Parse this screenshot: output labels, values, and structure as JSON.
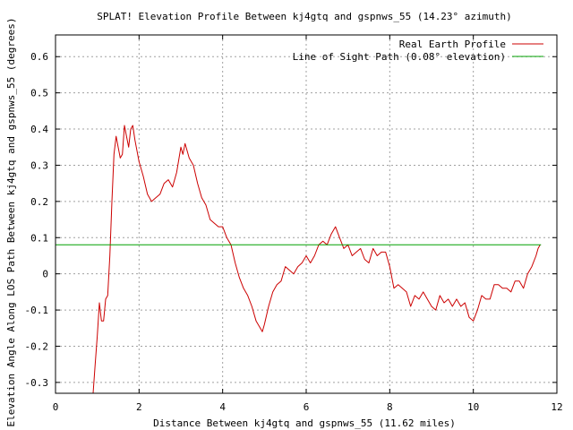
{
  "chart_data": {
    "type": "line",
    "title": "SPLAT! Elevation Profile Between kj4gtq and gspnws_55 (14.23° azimuth)",
    "xlabel": "Distance Between kj4gtq and gspnws_55 (11.62 miles)",
    "ylabel": "Elevation Angle Along LOS Path Between kj4gtq and gspnws_55 (degrees)",
    "xlim": [
      0,
      12
    ],
    "ylim": [
      -0.33,
      0.66
    ],
    "xticks": [
      0,
      2,
      4,
      6,
      8,
      10,
      12
    ],
    "xtick_labels": [
      "0",
      "2",
      "4",
      "6",
      "8",
      "10",
      "12"
    ],
    "yticks": [
      -0.3,
      -0.2,
      -0.1,
      0,
      0.1,
      0.2,
      0.3,
      0.4,
      0.5,
      0.6
    ],
    "ytick_labels": [
      "-0.3",
      "-0.2",
      "-0.1",
      "0",
      "0.1",
      "0.2",
      "0.3",
      "0.4",
      "0.5",
      "0.6"
    ],
    "grid": true,
    "legend_position": "top-right",
    "series": [
      {
        "name": "Real Earth Profile",
        "color": "#cc0000",
        "x": [
          0.9,
          0.95,
          1.0,
          1.05,
          1.1,
          1.15,
          1.2,
          1.25,
          1.3,
          1.35,
          1.4,
          1.45,
          1.5,
          1.55,
          1.6,
          1.65,
          1.7,
          1.75,
          1.8,
          1.85,
          1.9,
          1.95,
          2.0,
          2.1,
          2.2,
          2.3,
          2.4,
          2.5,
          2.6,
          2.7,
          2.8,
          2.9,
          3.0,
          3.05,
          3.1,
          3.15,
          3.2,
          3.3,
          3.4,
          3.5,
          3.6,
          3.7,
          3.8,
          3.9,
          4.0,
          4.1,
          4.2,
          4.3,
          4.4,
          4.5,
          4.6,
          4.7,
          4.8,
          4.9,
          4.95,
          5.0,
          5.1,
          5.2,
          5.3,
          5.4,
          5.5,
          5.6,
          5.7,
          5.8,
          5.9,
          6.0,
          6.1,
          6.2,
          6.3,
          6.4,
          6.5,
          6.6,
          6.7,
          6.8,
          6.9,
          7.0,
          7.1,
          7.2,
          7.3,
          7.4,
          7.5,
          7.6,
          7.7,
          7.8,
          7.9,
          8.0,
          8.1,
          8.2,
          8.3,
          8.4,
          8.5,
          8.6,
          8.7,
          8.8,
          8.9,
          9.0,
          9.1,
          9.2,
          9.3,
          9.4,
          9.5,
          9.6,
          9.7,
          9.8,
          9.9,
          10.0,
          10.1,
          10.2,
          10.3,
          10.4,
          10.5,
          10.6,
          10.7,
          10.8,
          10.9,
          11.0,
          11.1,
          11.2,
          11.3,
          11.4,
          11.5,
          11.55,
          11.6
        ],
        "y": [
          -0.33,
          -0.25,
          -0.17,
          -0.08,
          -0.13,
          -0.13,
          -0.07,
          -0.06,
          0.05,
          0.2,
          0.33,
          0.38,
          0.35,
          0.32,
          0.33,
          0.41,
          0.38,
          0.35,
          0.4,
          0.41,
          0.37,
          0.34,
          0.31,
          0.27,
          0.22,
          0.2,
          0.21,
          0.22,
          0.25,
          0.26,
          0.24,
          0.28,
          0.35,
          0.33,
          0.36,
          0.34,
          0.32,
          0.3,
          0.25,
          0.21,
          0.19,
          0.15,
          0.14,
          0.13,
          0.13,
          0.1,
          0.08,
          0.03,
          -0.01,
          -0.04,
          -0.06,
          -0.09,
          -0.13,
          -0.15,
          -0.16,
          -0.14,
          -0.09,
          -0.05,
          -0.03,
          -0.02,
          0.02,
          0.01,
          0.0,
          0.02,
          0.03,
          0.05,
          0.03,
          0.05,
          0.08,
          0.09,
          0.08,
          0.11,
          0.13,
          0.1,
          0.07,
          0.08,
          0.05,
          0.06,
          0.07,
          0.04,
          0.03,
          0.07,
          0.05,
          0.06,
          0.06,
          0.02,
          -0.04,
          -0.03,
          -0.04,
          -0.05,
          -0.09,
          -0.06,
          -0.07,
          -0.05,
          -0.07,
          -0.09,
          -0.1,
          -0.06,
          -0.08,
          -0.07,
          -0.09,
          -0.07,
          -0.09,
          -0.08,
          -0.12,
          -0.13,
          -0.1,
          -0.06,
          -0.07,
          -0.07,
          -0.03,
          -0.03,
          -0.04,
          -0.04,
          -0.05,
          -0.02,
          -0.02,
          -0.04,
          0.0,
          0.02,
          0.05,
          0.07,
          0.08
        ]
      },
      {
        "name": "Line of Sight Path (0.08° elevation)",
        "color": "#00a000",
        "x": [
          0,
          11.62
        ],
        "y": [
          0.08,
          0.08
        ]
      }
    ]
  }
}
